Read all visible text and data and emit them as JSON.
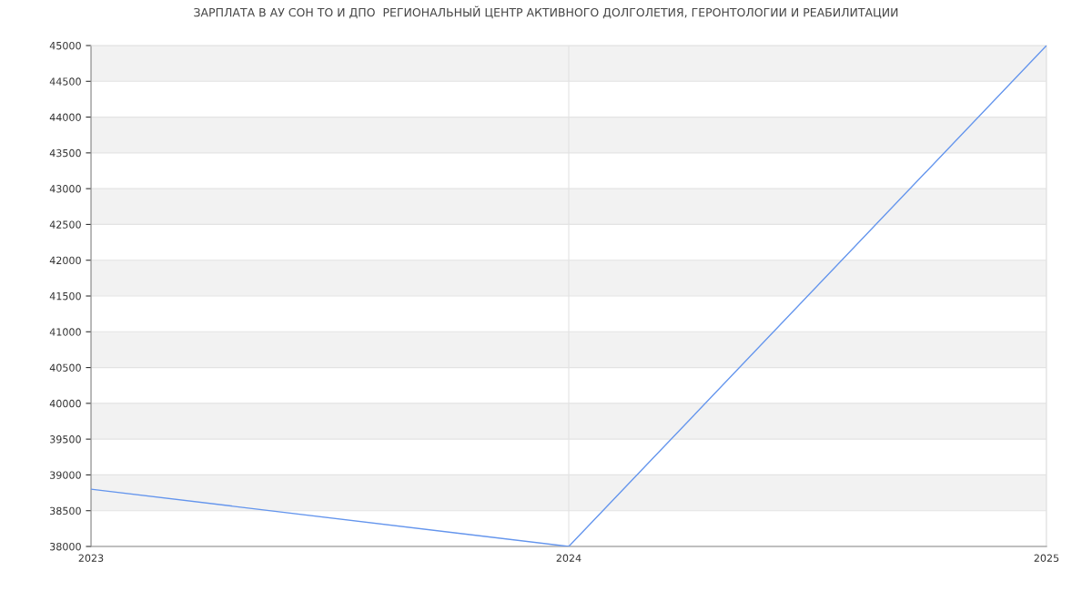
{
  "chart_data": {
    "type": "line",
    "title": "ЗАРПЛАТА В АУ СОН ТО И ДПО  РЕГИОНАЛЬНЫЙ ЦЕНТР АКТИВНОГО ДОЛГОЛЕТИЯ, ГЕРОНТОЛОГИИ И РЕАБИЛИТАЦИИ",
    "x": [
      2023,
      2024,
      2025
    ],
    "series": [
      {
        "color": "#6495ed",
        "values": [
          38800,
          38000,
          45000
        ]
      }
    ],
    "xlim": [
      2023,
      2025
    ],
    "xticks": [
      2023,
      2024,
      2025
    ],
    "ylim": [
      38000,
      45000
    ],
    "yticks": [
      38000,
      38500,
      39000,
      39500,
      40000,
      40500,
      41000,
      41500,
      42000,
      42500,
      43000,
      43500,
      44000,
      44500,
      45000
    ],
    "bands": [
      {
        "axis": "y",
        "from": 38500,
        "to": 39000,
        "color": "#f2f2f2"
      },
      {
        "axis": "y",
        "from": 39500,
        "to": 40000,
        "color": "#f2f2f2"
      },
      {
        "axis": "y",
        "from": 40500,
        "to": 41000,
        "color": "#f2f2f2"
      },
      {
        "axis": "y",
        "from": 41500,
        "to": 42000,
        "color": "#f2f2f2"
      },
      {
        "axis": "y",
        "from": 42500,
        "to": 43000,
        "color": "#f2f2f2"
      },
      {
        "axis": "y",
        "from": 43500,
        "to": 44000,
        "color": "#f2f2f2"
      },
      {
        "axis": "y",
        "from": 44500,
        "to": 45000,
        "color": "#f2f2f2"
      }
    ],
    "grid": true,
    "marker": "none",
    "line_style": "solid"
  }
}
